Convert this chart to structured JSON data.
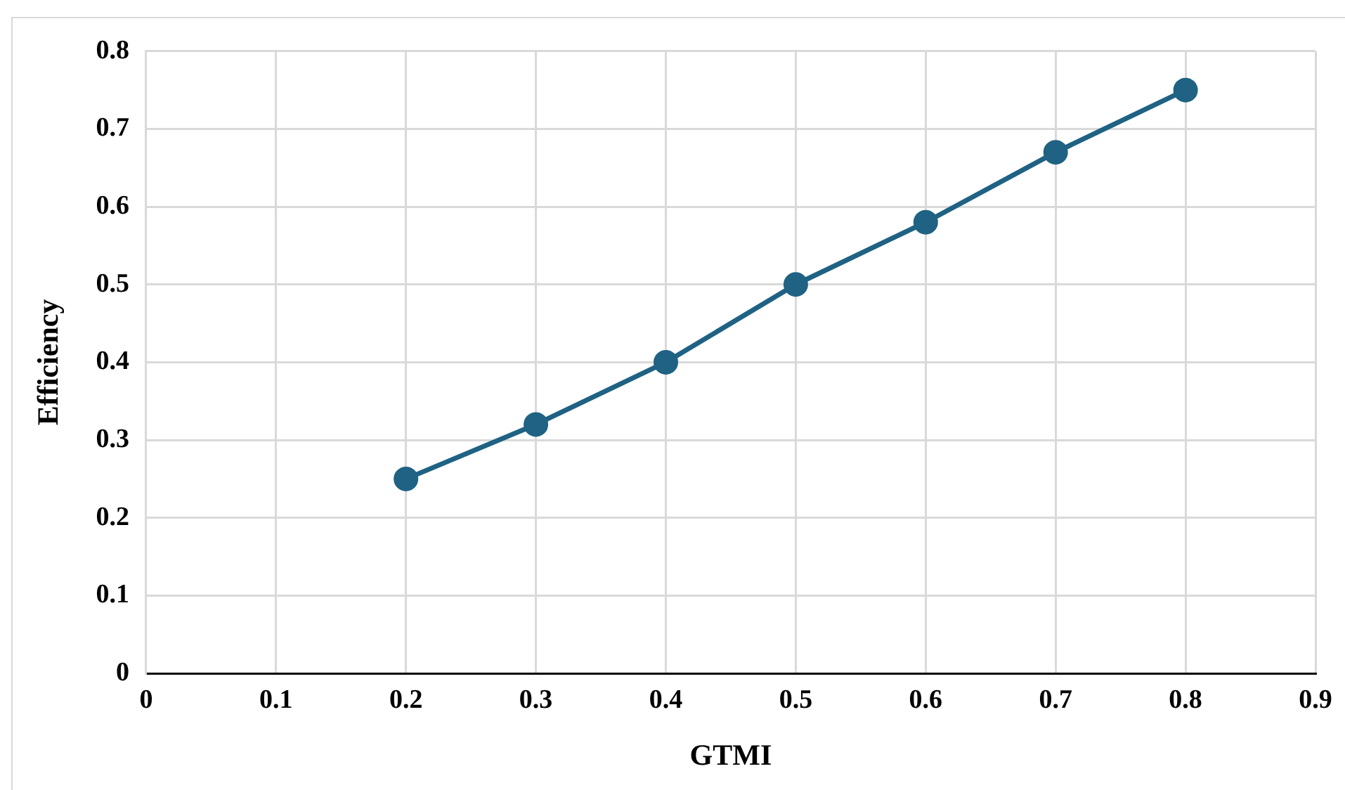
{
  "chart_data": {
    "type": "line",
    "xlabel": "GTMI",
    "ylabel": "Efficiency",
    "x": [
      0.2,
      0.3,
      0.4,
      0.5,
      0.6,
      0.7,
      0.8
    ],
    "series": [
      {
        "color": "#1f6283",
        "values": [
          0.25,
          0.32,
          0.4,
          0.5,
          0.58,
          0.67,
          0.75
        ]
      }
    ],
    "xlim": [
      0,
      0.9
    ],
    "xticks": [
      0,
      0.1,
      0.2,
      0.3,
      0.4,
      0.5,
      0.6,
      0.7,
      0.8,
      0.9
    ],
    "ylim": [
      0,
      0.8
    ],
    "yticks": [
      0,
      0.1,
      0.2,
      0.3,
      0.4,
      0.5,
      0.6,
      0.7,
      0.8
    ],
    "grid": true,
    "legend": false,
    "marker": "circle",
    "line_style": "solid"
  }
}
